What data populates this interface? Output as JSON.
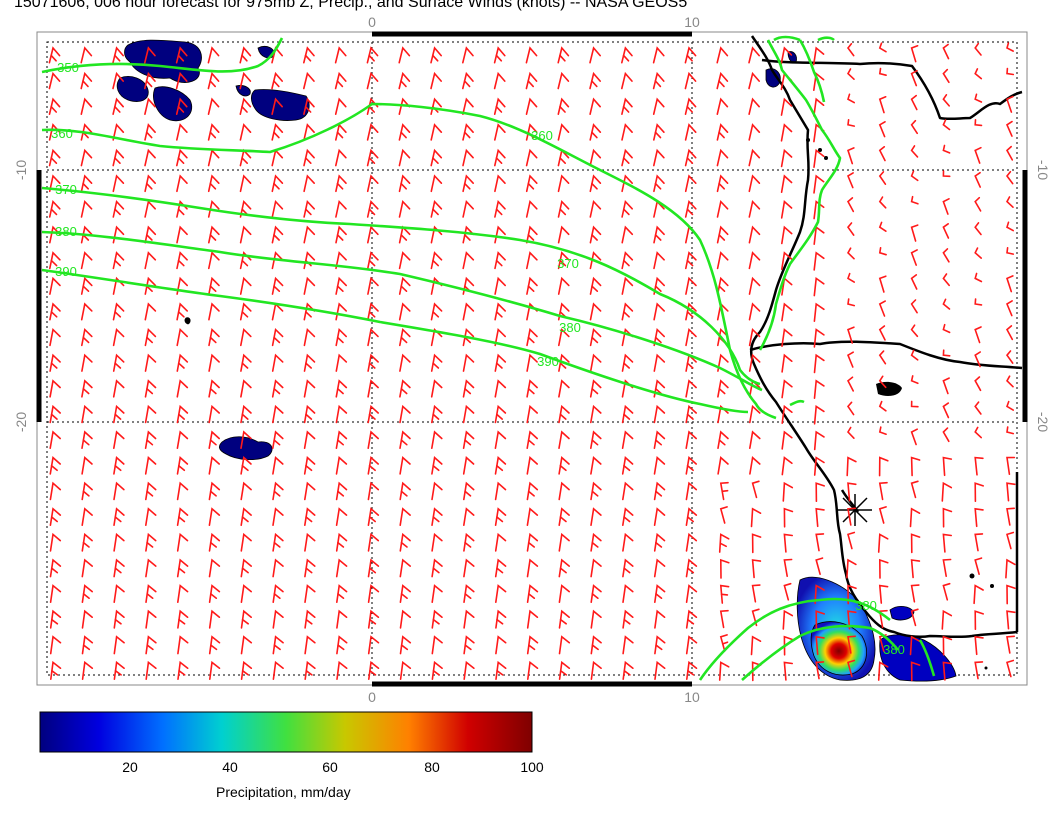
{
  "title": "15071606, 006 hour forecast for 975mb Z, Precip., and Surface Winds (knots) -- NASA GEOS5",
  "axes": {
    "top_ticks": [
      "0",
      "10"
    ],
    "bottom_ticks": [
      "0",
      "10"
    ],
    "left_ticks": [
      "-10",
      "-20"
    ],
    "right_ticks": [
      "-10",
      "-20"
    ]
  },
  "contours": {
    "color": "#22e622",
    "labels": [
      "350",
      "360",
      "370",
      "380",
      "390",
      "360",
      "370",
      "380",
      "390",
      "380",
      "380"
    ]
  },
  "wind_barb_color": "#ff1a1a",
  "coastline_color": "#000000",
  "colorbar": {
    "label": "Precipitation, mm/day",
    "ticks": [
      "20",
      "40",
      "60",
      "80",
      "100"
    ],
    "min": 0,
    "max": 100,
    "colors": [
      "#00007f",
      "#0000ff",
      "#0080ff",
      "#00d0d0",
      "#40e040",
      "#c0c000",
      "#ff8000",
      "#d00000",
      "#7f0000"
    ]
  }
}
